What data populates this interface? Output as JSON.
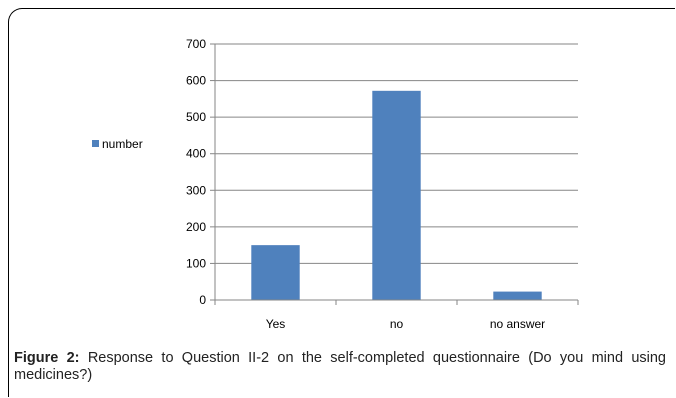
{
  "chart_data": {
    "type": "bar",
    "categories": [
      "Yes",
      "no",
      "no answer"
    ],
    "series": [
      {
        "name": "number",
        "values": [
          150,
          572,
          23
        ],
        "color": "#4f81bd"
      }
    ],
    "ylim": [
      0,
      700
    ],
    "yticks": [
      0,
      100,
      200,
      300,
      400,
      500,
      600,
      700
    ],
    "grid": true,
    "legend": "left"
  },
  "caption": {
    "label": "Figure 2:",
    "text": " Response to Question II-2 on the self-completed questionnaire (Do you mind using medicines?)"
  }
}
